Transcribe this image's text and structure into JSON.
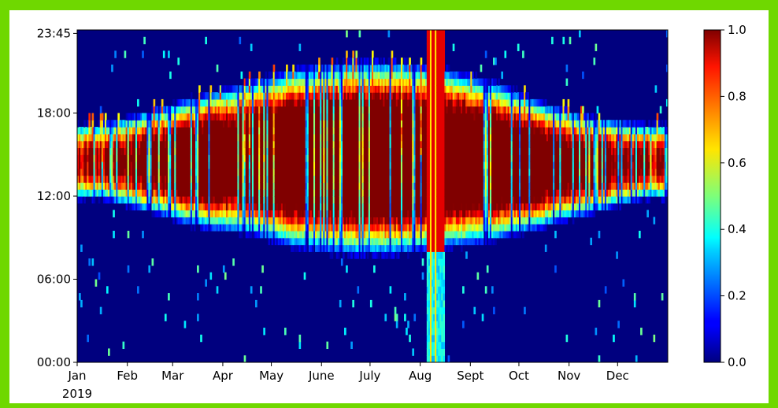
{
  "chart_data": {
    "type": "heatmap",
    "title": "",
    "xlabel": "",
    "ylabel": "",
    "x_year_label": "2019",
    "x_ticks": [
      "Jan",
      "Feb",
      "Mar",
      "Apr",
      "May",
      "June",
      "July",
      "Aug",
      "Sept",
      "Oct",
      "Nov",
      "Dec"
    ],
    "x_range": [
      "2019-01-01",
      "2019-12-31"
    ],
    "y_ticks": [
      "00:00",
      "06:00",
      "12:00",
      "18:00",
      "23:45"
    ],
    "y_range_hours": [
      0,
      23.75
    ],
    "colorbar": {
      "colormap": "jet",
      "range": [
        0,
        1
      ],
      "ticks": [
        "0.0",
        "0.2",
        "0.4",
        "0.6",
        "0.8",
        "1.0"
      ]
    },
    "pattern": {
      "peak_hour": 14.5,
      "seasonal_active_window": [
        {
          "month": "Jan",
          "start_hour": 11.5,
          "end_hour": 17
        },
        {
          "month": "Feb",
          "start_hour": 10.5,
          "end_hour": 18
        },
        {
          "month": "Mar",
          "start_hour": 9.5,
          "end_hour": 19
        },
        {
          "month": "Apr",
          "start_hour": 9,
          "end_hour": 20
        },
        {
          "month": "May",
          "start_hour": 8,
          "end_hour": 21
        },
        {
          "month": "June",
          "start_hour": 7.5,
          "end_hour": 21.5
        },
        {
          "month": "July",
          "start_hour": 7.5,
          "end_hour": 21.5
        },
        {
          "month": "Aug",
          "start_hour": 8,
          "end_hour": 21
        },
        {
          "month": "Sept",
          "start_hour": 8.5,
          "end_hour": 20
        },
        {
          "month": "Oct",
          "start_hour": 9.5,
          "end_hour": 18.5
        },
        {
          "month": "Nov",
          "start_hour": 10.5,
          "end_hour": 17.5
        },
        {
          "month": "Dec",
          "start_hour": 11.5,
          "end_hour": 17
        }
      ],
      "full_day_high_period": [
        "2019-08-05",
        "2019-08-15"
      ]
    }
  }
}
